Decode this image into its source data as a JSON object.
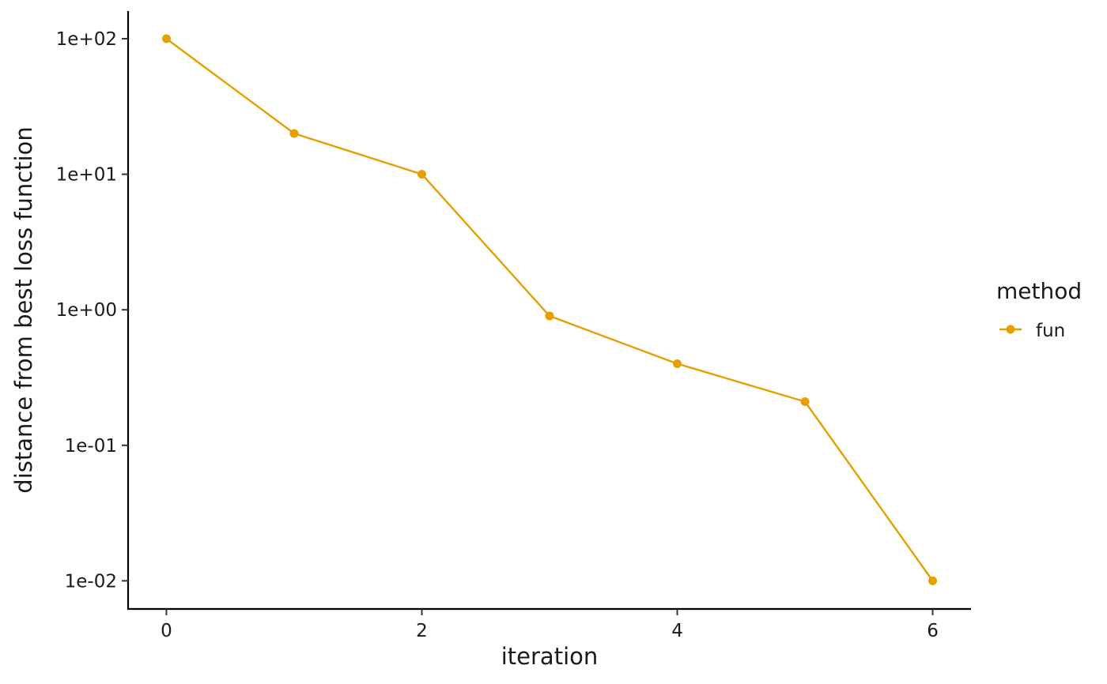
{
  "chart_data": {
    "type": "line",
    "xlabel": "iteration",
    "ylabel": "distance from best loss function",
    "x_scale": "linear",
    "y_scale": "log10",
    "xlim": [
      -0.3,
      6.3
    ],
    "ylim": [
      0.0062,
      160
    ],
    "x_ticks": [
      0,
      2,
      4,
      6
    ],
    "x_tick_labels": [
      "0",
      "2",
      "4",
      "6"
    ],
    "y_ticks": [
      100,
      10,
      1,
      0.1,
      0.01
    ],
    "y_tick_labels": [
      "1e+02",
      "1e+01",
      "1e+00",
      "1e-01",
      "1e-02"
    ],
    "grid": false,
    "legend": {
      "title": "method",
      "position": "right"
    },
    "series": [
      {
        "name": "fun",
        "color": "#E69F00",
        "x": [
          0,
          1,
          2,
          3,
          4,
          5,
          6
        ],
        "y": [
          100,
          20,
          10,
          0.9,
          0.4,
          0.21,
          0.01
        ]
      }
    ]
  }
}
